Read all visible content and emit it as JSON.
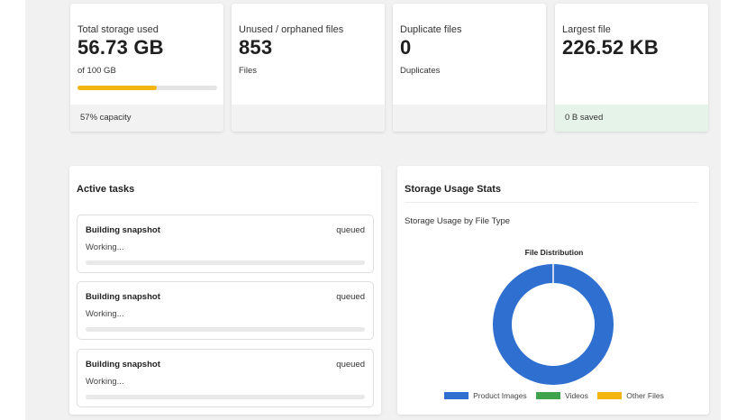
{
  "stats": [
    {
      "title": "Total storage used",
      "value": "56.73 GB",
      "sub": "of 100 GB",
      "progress": 0.57,
      "footer": "57% capacity",
      "footer_tone": "neutral"
    },
    {
      "title": "Unused / orphaned files",
      "value": "853",
      "sub": "Files",
      "footer": "",
      "footer_tone": "neutral"
    },
    {
      "title": "Duplicate files",
      "value": "0",
      "sub": "Duplicates",
      "footer": "",
      "footer_tone": "neutral"
    },
    {
      "title": "Largest file",
      "value": "226.52 KB",
      "sub": "",
      "footer": "0 B saved",
      "footer_tone": "positive"
    }
  ],
  "active_tasks": {
    "title": "Active tasks",
    "tasks": [
      {
        "name": "Building snapshot",
        "status": "queued",
        "message": "Working...",
        "progress": 0
      },
      {
        "name": "Building snapshot",
        "status": "queued",
        "message": "Working...",
        "progress": 0
      },
      {
        "name": "Building snapshot",
        "status": "queued",
        "message": "Working...",
        "progress": 0
      }
    ]
  },
  "storage_stats": {
    "title": "Storage Usage Stats",
    "subtitle": "Storage Usage by File Type"
  },
  "chart_data": {
    "type": "pie",
    "variant": "doughnut",
    "title": "File Distribution",
    "categories": [
      "Product Images",
      "Videos",
      "Other Files"
    ],
    "values": [
      100,
      0,
      0
    ],
    "colors": [
      "#2f6fd0",
      "#3fa34d",
      "#f2b50f"
    ],
    "legend": "bottom"
  }
}
